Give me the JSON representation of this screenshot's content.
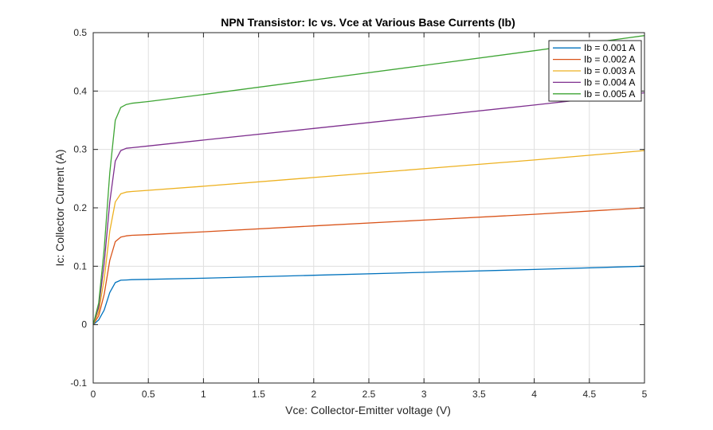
{
  "chart_data": {
    "type": "line",
    "title": "NPN Transistor: Ic vs. Vce at Various Base Currents (Ib)",
    "xlabel": "Vce: Collector-Emitter voltage (V)",
    "ylabel": "Ic: Collector Current (A)",
    "xlim": [
      0,
      5
    ],
    "ylim": [
      -0.1,
      0.5
    ],
    "xticks": [
      0,
      0.5,
      1,
      1.5,
      2,
      2.5,
      3,
      3.5,
      4,
      4.5,
      5
    ],
    "xtick_labels": [
      "0",
      "0.5",
      "1",
      "1.5",
      "2",
      "2.5",
      "3",
      "3.5",
      "4",
      "4.5",
      "5"
    ],
    "yticks": [
      -0.1,
      0,
      0.1,
      0.2,
      0.3,
      0.4,
      0.5
    ],
    "ytick_labels": [
      "-0.1",
      "0",
      "0.1",
      "0.2",
      "0.3",
      "0.4",
      "0.5"
    ],
    "grid": true,
    "legend_position": "top-right",
    "series": [
      {
        "name": "Ib = 0.001 A",
        "color": "#0072bd",
        "x": [
          0,
          0.05,
          0.1,
          0.15,
          0.2,
          0.25,
          0.3,
          0.35,
          0.5,
          1,
          2,
          3,
          4,
          5
        ],
        "y": [
          0,
          0.008,
          0.025,
          0.055,
          0.072,
          0.076,
          0.0765,
          0.077,
          0.0775,
          0.0795,
          0.0845,
          0.0895,
          0.0945,
          0.1
        ]
      },
      {
        "name": "Ib = 0.002 A",
        "color": "#d95319",
        "x": [
          0,
          0.05,
          0.1,
          0.15,
          0.2,
          0.25,
          0.3,
          0.35,
          0.5,
          1,
          2,
          3,
          4,
          5
        ],
        "y": [
          0,
          0.015,
          0.052,
          0.11,
          0.142,
          0.15,
          0.152,
          0.153,
          0.154,
          0.159,
          0.169,
          0.179,
          0.189,
          0.2
        ]
      },
      {
        "name": "Ib = 0.003 A",
        "color": "#edb120",
        "x": [
          0,
          0.05,
          0.1,
          0.15,
          0.2,
          0.25,
          0.3,
          0.35,
          0.5,
          1,
          2,
          3,
          4,
          5
        ],
        "y": [
          0,
          0.022,
          0.078,
          0.16,
          0.21,
          0.224,
          0.227,
          0.228,
          0.23,
          0.237,
          0.252,
          0.267,
          0.282,
          0.298
        ]
      },
      {
        "name": "Ib = 0.004 A",
        "color": "#7e2f8e",
        "x": [
          0,
          0.05,
          0.1,
          0.15,
          0.2,
          0.25,
          0.3,
          0.35,
          0.5,
          1,
          2,
          3,
          4,
          5
        ],
        "y": [
          0,
          0.03,
          0.105,
          0.21,
          0.28,
          0.298,
          0.302,
          0.303,
          0.306,
          0.316,
          0.336,
          0.356,
          0.376,
          0.397
        ]
      },
      {
        "name": "Ib = 0.005 A",
        "color": "#3fa535",
        "x": [
          0,
          0.05,
          0.1,
          0.15,
          0.2,
          0.25,
          0.3,
          0.35,
          0.5,
          1,
          2,
          3,
          4,
          5
        ],
        "y": [
          0,
          0.037,
          0.13,
          0.26,
          0.35,
          0.372,
          0.377,
          0.379,
          0.382,
          0.394,
          0.419,
          0.444,
          0.469,
          0.495
        ]
      }
    ]
  }
}
